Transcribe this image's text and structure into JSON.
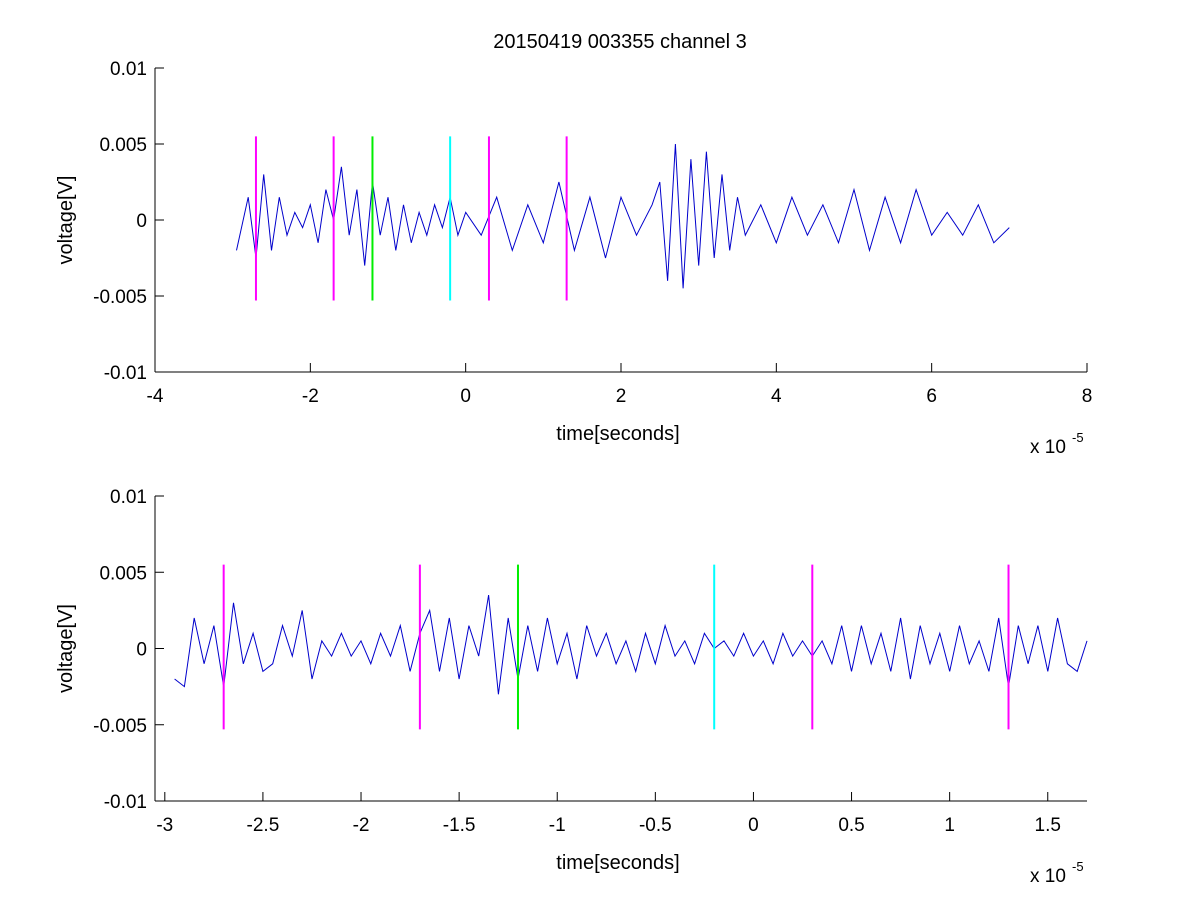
{
  "figure": {
    "title": "20150419 003355 channel 3",
    "background": "#ffffff"
  },
  "chart_data": [
    {
      "type": "line",
      "title": "20150419 003355 channel 3",
      "xlabel": "time[seconds]",
      "ylabel": "voltage[V]",
      "x_multiplier": "x 10",
      "x_exponent": "-5",
      "xlim": [
        -4,
        8
      ],
      "ylim": [
        -0.01,
        0.01
      ],
      "xticks": [
        -4,
        -2,
        0,
        2,
        4,
        6,
        8
      ],
      "xtick_labels": [
        "-4",
        "-2",
        "0",
        "2",
        "4",
        "6",
        "8"
      ],
      "yticks": [
        0.01,
        0.005,
        0,
        -0.005,
        -0.01
      ],
      "ytick_labels": [
        "0.01",
        "0.005",
        "0",
        "-0.005",
        "-0.01"
      ],
      "grid": false,
      "series": [
        {
          "color": "#0000cc",
          "x": [
            -2.95,
            -2.8,
            -2.7,
            -2.6,
            -2.5,
            -2.4,
            -2.3,
            -2.2,
            -2.1,
            -2.0,
            -1.9,
            -1.8,
            -1.7,
            -1.6,
            -1.5,
            -1.4,
            -1.3,
            -1.2,
            -1.1,
            -1.0,
            -0.9,
            -0.8,
            -0.7,
            -0.6,
            -0.5,
            -0.4,
            -0.3,
            -0.2,
            -0.1,
            0.0,
            0.2,
            0.4,
            0.6,
            0.8,
            1.0,
            1.2,
            1.4,
            1.6,
            1.8,
            2.0,
            2.2,
            2.4,
            2.5,
            2.6,
            2.7,
            2.8,
            2.9,
            3.0,
            3.1,
            3.2,
            3.3,
            3.4,
            3.5,
            3.6,
            3.8,
            4.0,
            4.2,
            4.4,
            4.6,
            4.8,
            5.0,
            5.2,
            5.4,
            5.6,
            5.8,
            6.0,
            6.2,
            6.4,
            6.6,
            6.8,
            7.0
          ],
          "y": [
            -0.002,
            0.0015,
            -0.0025,
            0.003,
            -0.002,
            0.0015,
            -0.001,
            0.0005,
            -0.0005,
            0.001,
            -0.0015,
            0.002,
            0.0,
            0.0035,
            -0.001,
            0.002,
            -0.003,
            0.0025,
            -0.001,
            0.0015,
            -0.002,
            0.001,
            -0.0015,
            0.0005,
            -0.001,
            0.001,
            -0.0005,
            0.0015,
            -0.001,
            0.0005,
            -0.001,
            0.0015,
            -0.002,
            0.001,
            -0.0015,
            0.0025,
            -0.002,
            0.0015,
            -0.0025,
            0.0015,
            -0.001,
            0.001,
            0.0025,
            -0.004,
            0.005,
            -0.0045,
            0.004,
            -0.003,
            0.0045,
            -0.0025,
            0.003,
            -0.002,
            0.0015,
            -0.001,
            0.001,
            -0.0015,
            0.0015,
            -0.001,
            0.001,
            -0.0015,
            0.002,
            -0.002,
            0.0015,
            -0.0015,
            0.002,
            -0.001,
            0.0005,
            -0.001,
            0.001,
            -0.0015,
            -0.0005
          ]
        }
      ],
      "markers": [
        {
          "x": -2.7,
          "y_range": [
            -0.0053,
            0.0055
          ],
          "color": "#ff00ff"
        },
        {
          "x": -1.7,
          "y_range": [
            -0.0053,
            0.0055
          ],
          "color": "#ff00ff"
        },
        {
          "x": -1.2,
          "y_range": [
            -0.0053,
            0.0055
          ],
          "color": "#00ee00"
        },
        {
          "x": -0.2,
          "y_range": [
            -0.0053,
            0.0055
          ],
          "color": "#00ffff"
        },
        {
          "x": 0.3,
          "y_range": [
            -0.0053,
            0.0055
          ],
          "color": "#ff00ff"
        },
        {
          "x": 1.3,
          "y_range": [
            -0.0053,
            0.0055
          ],
          "color": "#ff00ff"
        }
      ]
    },
    {
      "type": "line",
      "title": "",
      "xlabel": "time[seconds]",
      "ylabel": "voltage[V]",
      "x_multiplier": "x 10",
      "x_exponent": "-5",
      "xlim": [
        -3.05,
        1.7
      ],
      "ylim": [
        -0.01,
        0.01
      ],
      "xticks": [
        -3,
        -2.5,
        -2,
        -1.5,
        -1,
        -0.5,
        0,
        0.5,
        1,
        1.5
      ],
      "xtick_labels": [
        "-3",
        "-2.5",
        "-2",
        "-1.5",
        "-1",
        "-0.5",
        "0",
        "0.5",
        "1",
        "1.5"
      ],
      "yticks": [
        0.01,
        0.005,
        0,
        -0.005,
        -0.01
      ],
      "ytick_labels": [
        "0.01",
        "0.005",
        "0",
        "-0.005",
        "-0.01"
      ],
      "grid": false,
      "series": [
        {
          "color": "#0000cc",
          "x": [
            -2.95,
            -2.9,
            -2.85,
            -2.8,
            -2.75,
            -2.7,
            -2.65,
            -2.6,
            -2.55,
            -2.5,
            -2.45,
            -2.4,
            -2.35,
            -2.3,
            -2.25,
            -2.2,
            -2.15,
            -2.1,
            -2.05,
            -2.0,
            -1.95,
            -1.9,
            -1.85,
            -1.8,
            -1.75,
            -1.7,
            -1.65,
            -1.6,
            -1.55,
            -1.5,
            -1.45,
            -1.4,
            -1.35,
            -1.3,
            -1.25,
            -1.2,
            -1.15,
            -1.1,
            -1.05,
            -1.0,
            -0.95,
            -0.9,
            -0.85,
            -0.8,
            -0.75,
            -0.7,
            -0.65,
            -0.6,
            -0.55,
            -0.5,
            -0.45,
            -0.4,
            -0.35,
            -0.3,
            -0.25,
            -0.2,
            -0.15,
            -0.1,
            -0.05,
            0.0,
            0.05,
            0.1,
            0.15,
            0.2,
            0.25,
            0.3,
            0.35,
            0.4,
            0.45,
            0.5,
            0.55,
            0.6,
            0.65,
            0.7,
            0.75,
            0.8,
            0.85,
            0.9,
            0.95,
            1.0,
            1.05,
            1.1,
            1.15,
            1.2,
            1.25,
            1.3,
            1.35,
            1.4,
            1.45,
            1.5,
            1.55,
            1.6,
            1.65,
            1.7
          ],
          "y": [
            -0.002,
            -0.0025,
            0.002,
            -0.001,
            0.0015,
            -0.0025,
            0.003,
            -0.001,
            0.001,
            -0.0015,
            -0.001,
            0.0015,
            -0.0005,
            0.0025,
            -0.002,
            0.0005,
            -0.0005,
            0.001,
            -0.0005,
            0.0005,
            -0.001,
            0.001,
            -0.0005,
            0.0015,
            -0.0015,
            0.001,
            0.0025,
            -0.0015,
            0.002,
            -0.002,
            0.0015,
            -0.0005,
            0.0035,
            -0.003,
            0.002,
            -0.002,
            0.0015,
            -0.0015,
            0.002,
            -0.001,
            0.001,
            -0.002,
            0.0015,
            -0.0005,
            0.001,
            -0.001,
            0.0005,
            -0.0015,
            0.001,
            -0.001,
            0.0015,
            -0.0005,
            0.0005,
            -0.001,
            0.001,
            0.0,
            0.0005,
            -0.0005,
            0.001,
            -0.0005,
            0.0005,
            -0.001,
            0.001,
            -0.0005,
            0.0005,
            -0.0005,
            0.0005,
            -0.001,
            0.0015,
            -0.0015,
            0.0015,
            -0.001,
            0.001,
            -0.0015,
            0.002,
            -0.002,
            0.0015,
            -0.001,
            0.001,
            -0.0015,
            0.0015,
            -0.001,
            0.0005,
            -0.0015,
            0.002,
            -0.0025,
            0.0015,
            -0.001,
            0.0015,
            -0.0015,
            0.002,
            -0.001,
            -0.0015,
            0.0005
          ]
        }
      ],
      "markers": [
        {
          "x": -2.7,
          "y_range": [
            -0.0053,
            0.0055
          ],
          "color": "#ff00ff"
        },
        {
          "x": -1.7,
          "y_range": [
            -0.0053,
            0.0055
          ],
          "color": "#ff00ff"
        },
        {
          "x": -1.2,
          "y_range": [
            -0.0053,
            0.0055
          ],
          "color": "#00ee00"
        },
        {
          "x": -0.2,
          "y_range": [
            -0.0053,
            0.0055
          ],
          "color": "#00ffff"
        },
        {
          "x": 0.3,
          "y_range": [
            -0.0053,
            0.0055
          ],
          "color": "#ff00ff"
        },
        {
          "x": 1.3,
          "y_range": [
            -0.0053,
            0.0055
          ],
          "color": "#ff00ff"
        }
      ]
    }
  ]
}
